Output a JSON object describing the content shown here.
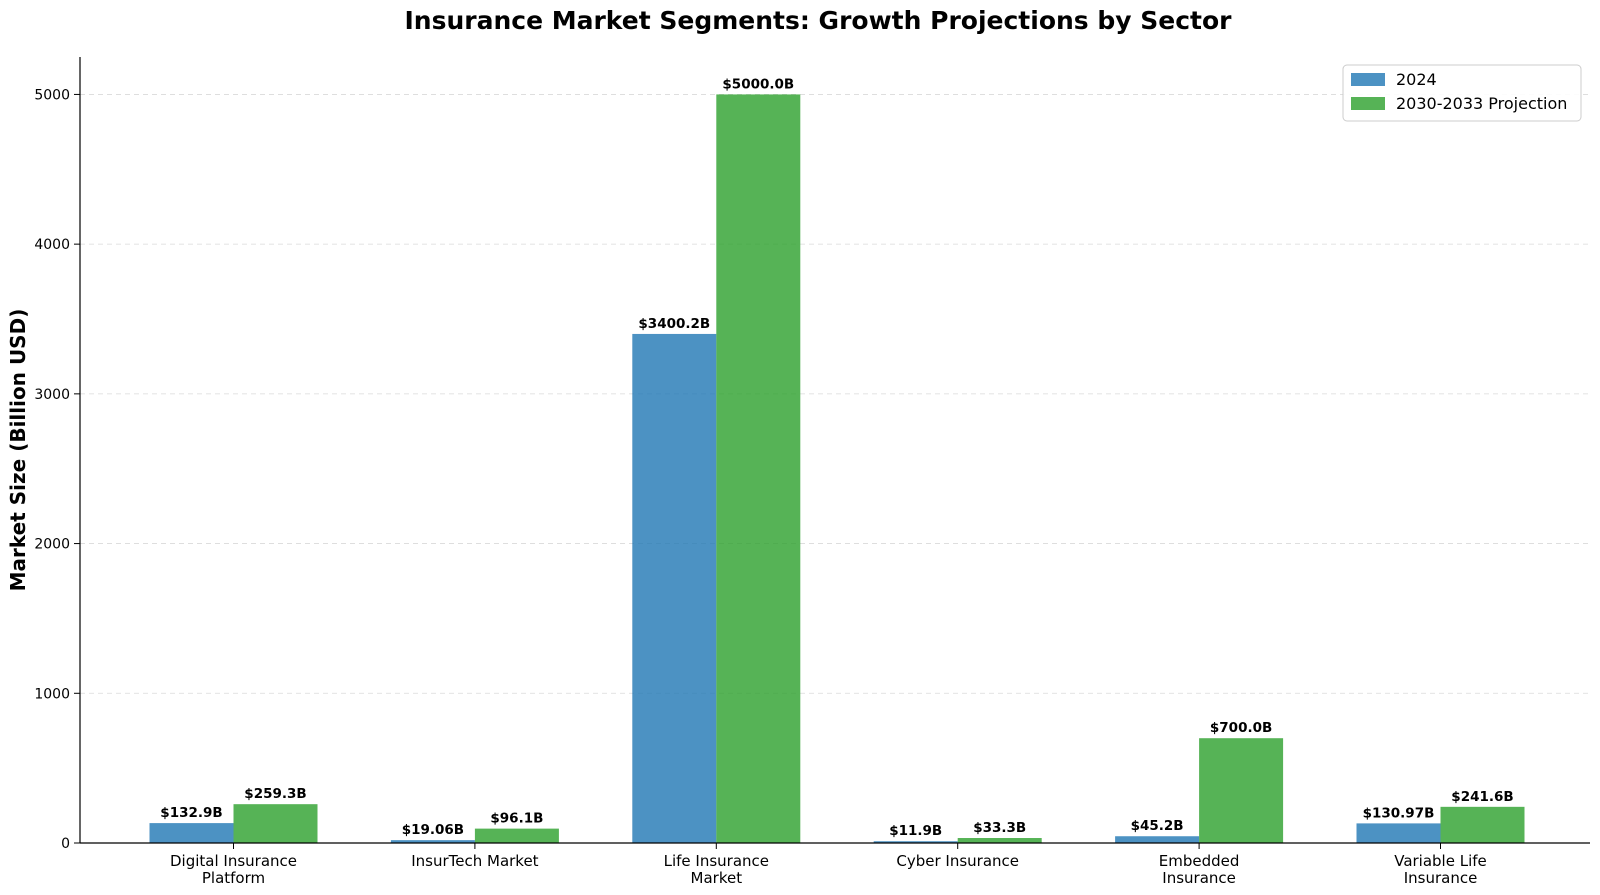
{
  "chart_data": {
    "type": "bar",
    "title": "Insurance Market Segments: Growth Projections by Sector",
    "xlabel": "",
    "ylabel": "Market Size (Billion USD)",
    "ylim": [
      0,
      5250
    ],
    "yticks": [
      0,
      1000,
      2000,
      3000,
      4000,
      5000
    ],
    "grid": "horizontal dashed",
    "legend_position": "top-right",
    "categories": [
      [
        "Digital Insurance",
        "Platform"
      ],
      [
        "InsurTech Market"
      ],
      [
        "Life Insurance",
        "Market"
      ],
      [
        "Cyber Insurance"
      ],
      [
        "Embedded",
        "Insurance"
      ],
      [
        "Variable Life",
        "Insurance"
      ]
    ],
    "series": [
      {
        "name": "2024",
        "color": "#1f77b4",
        "values": [
          132.9,
          19.06,
          3400.2,
          11.9,
          45.2,
          130.97
        ],
        "labels": [
          "$132.9B",
          "$19.06B",
          "$3400.2B",
          "$11.9B",
          "$45.2B",
          "$130.97B"
        ]
      },
      {
        "name": "2030-2033 Projection",
        "color": "#2ca02c",
        "values": [
          259.3,
          96.1,
          5000.0,
          33.3,
          700.0,
          241.6
        ],
        "labels": [
          "$259.3B",
          "$96.1B",
          "$5000.0B",
          "$33.3B",
          "$700.0B",
          "$241.6B"
        ]
      }
    ]
  }
}
